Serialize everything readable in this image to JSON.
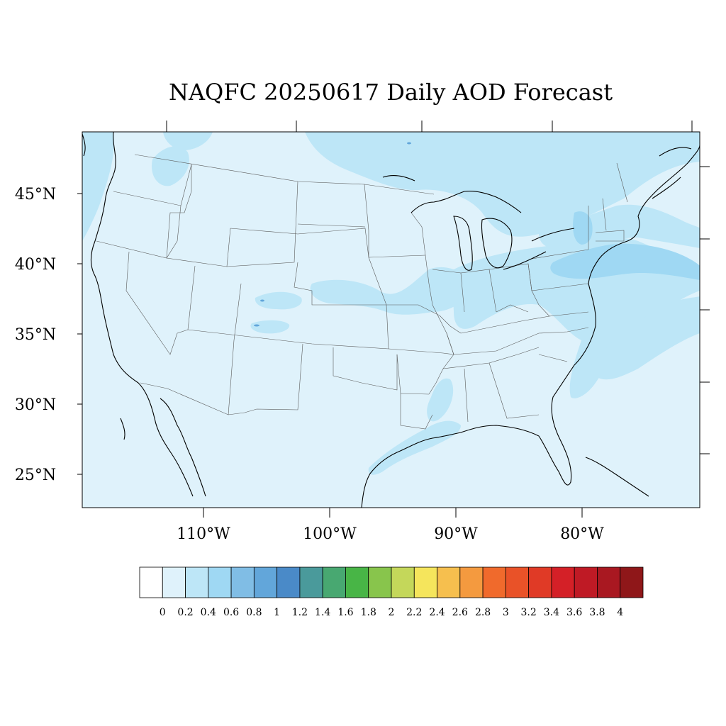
{
  "title": "NAQFC 20250617 Daily AOD Forecast",
  "lat_labels": [
    "45°N",
    "40°N",
    "35°N",
    "30°N",
    "25°N"
  ],
  "lon_labels": [
    "110°W",
    "100°W",
    "90°W",
    "80°W"
  ],
  "colorbar": {
    "labels": [
      "0",
      "0.2",
      "0.4",
      "0.6",
      "0.8",
      "1",
      "1.2",
      "1.4",
      "1.6",
      "1.8",
      "2",
      "2.2",
      "2.4",
      "2.6",
      "2.8",
      "3",
      "3.2",
      "3.4",
      "3.6",
      "3.8",
      "4"
    ],
    "colors": [
      "#ffffff",
      "#dff2fb",
      "#bde6f7",
      "#9fd8f3",
      "#80bde5",
      "#62a6da",
      "#4a8ac8",
      "#4a9a9b",
      "#48a871",
      "#48b546",
      "#88c54c",
      "#c4d75a",
      "#f5e55c",
      "#f6bf4e",
      "#f49a3f",
      "#f06a2c",
      "#e95228",
      "#e03a26",
      "#d42027",
      "#bf1a25",
      "#a91821",
      "#8f1719"
    ]
  },
  "colors": {
    "background_fill": "#dff2fb",
    "light_blue_fill": "#bde6f7",
    "medium_blue_fill": "#9fd8f3",
    "spot_fill": "#62a6da"
  }
}
